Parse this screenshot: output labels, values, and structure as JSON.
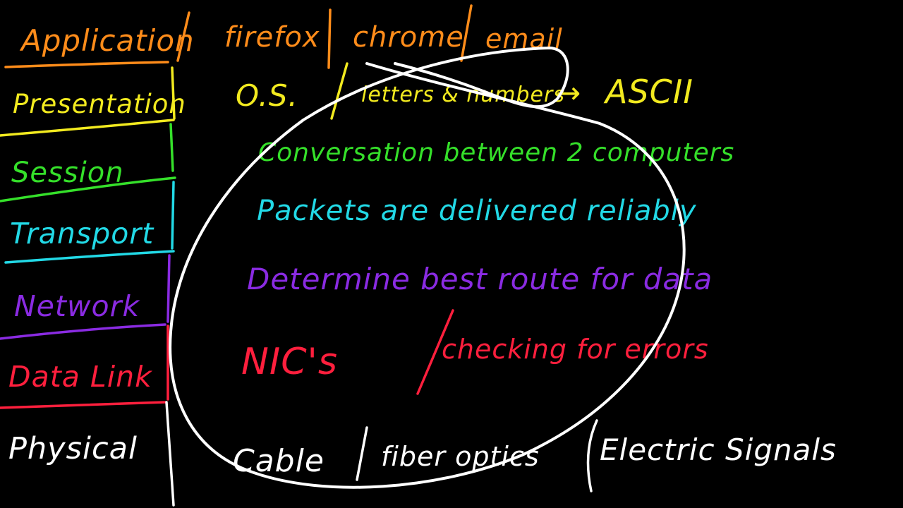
{
  "title": "",
  "palette": {
    "application": "#ff8c1a",
    "presentation": "#f2ea1f",
    "session": "#35e02a",
    "transport": "#22d9e6",
    "network": "#8a2be2",
    "data_link": "#ff1f3d",
    "physical": "#ffffff"
  },
  "layers": [
    {
      "key": "application",
      "label": "Application"
    },
    {
      "key": "presentation",
      "label": "Presentation"
    },
    {
      "key": "session",
      "label": "Session"
    },
    {
      "key": "transport",
      "label": "Transport"
    },
    {
      "key": "network",
      "label": "Network"
    },
    {
      "key": "data_link",
      "label": "Data Link"
    },
    {
      "key": "physical",
      "label": "Physical"
    }
  ],
  "notes": {
    "application": {
      "part1": "firefox",
      "part2": "chrome",
      "part3": "email"
    },
    "presentation": {
      "part1": "O.S.",
      "part2": "letters & numbers",
      "arrow": "→",
      "part3": "ASCII"
    },
    "session": {
      "text": "Conversation between 2 computers"
    },
    "transport": {
      "text": "Packets are delivered reliably"
    },
    "network": {
      "text": "Determine best route for data"
    },
    "data_link": {
      "part1": "NIC's",
      "part2": "checking for errors"
    },
    "physical": {
      "part1": "Cable",
      "part2": "fiber optics",
      "part3": "Electric Signals"
    }
  }
}
